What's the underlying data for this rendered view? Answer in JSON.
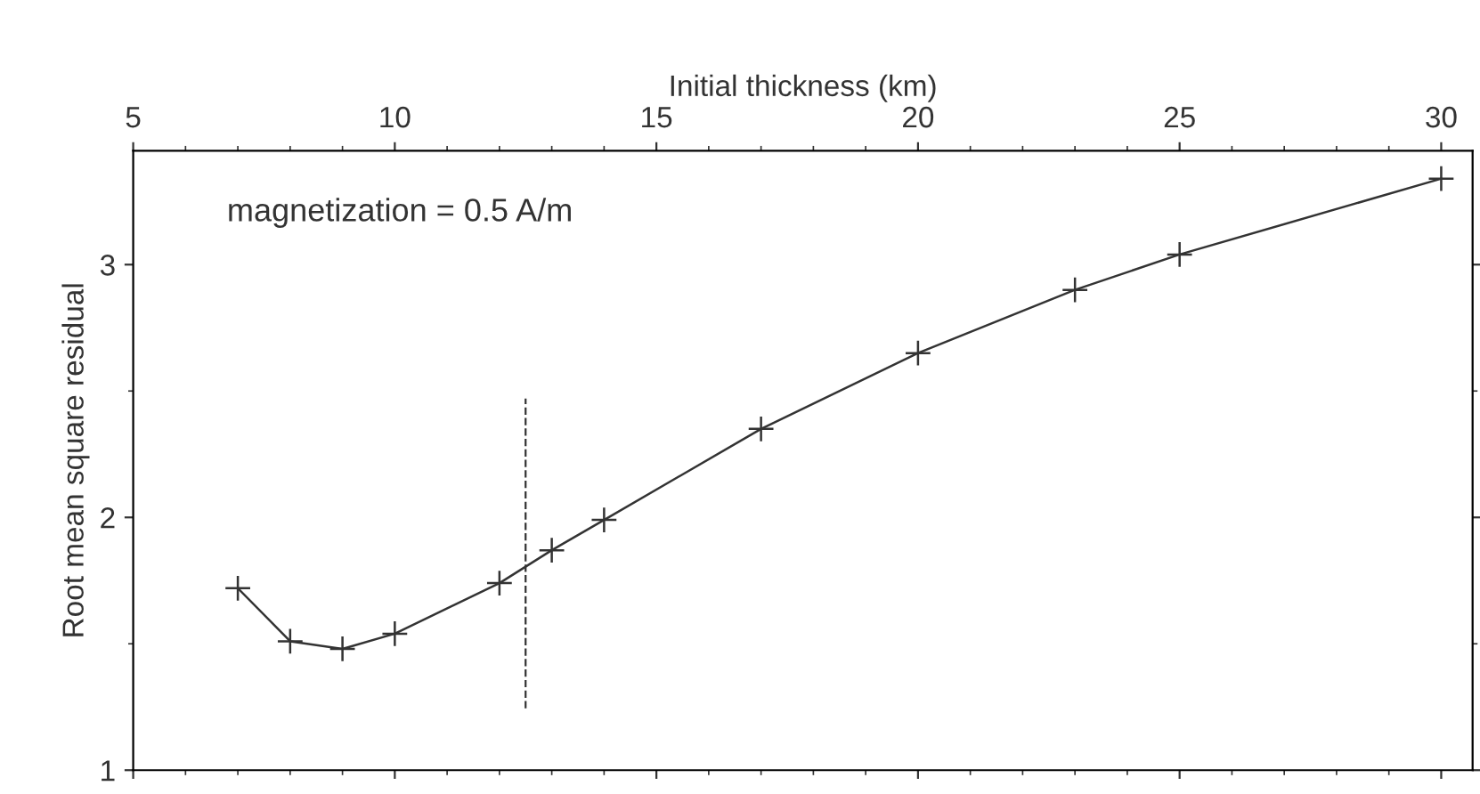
{
  "chart_data": {
    "type": "line",
    "xlabel": "Initial thickness (km)",
    "ylabel": "Root mean square residual",
    "annotations": [
      "magnetization = 0.5 A/m"
    ],
    "x": [
      7,
      8,
      9,
      10,
      12,
      13,
      14,
      17,
      20,
      23,
      25,
      30
    ],
    "series": [
      {
        "color": "#333333",
        "values": [
          1.72,
          1.51,
          1.48,
          1.54,
          1.74,
          1.87,
          1.99,
          2.35,
          2.65,
          2.9,
          3.04,
          3.34
        ]
      }
    ],
    "xlim": [
      5,
      30.6
    ],
    "ylim": [
      1,
      3.45
    ],
    "xticks": [
      5,
      10,
      15,
      20,
      25,
      30
    ],
    "yticks": [
      1,
      2,
      3
    ],
    "ref_lines": [
      {
        "axis": "x",
        "value": 12.5,
        "line_style": "dashed",
        "color": "#333333"
      }
    ],
    "marker": "cross",
    "line_style": "solid",
    "grid": false,
    "legend": false
  }
}
